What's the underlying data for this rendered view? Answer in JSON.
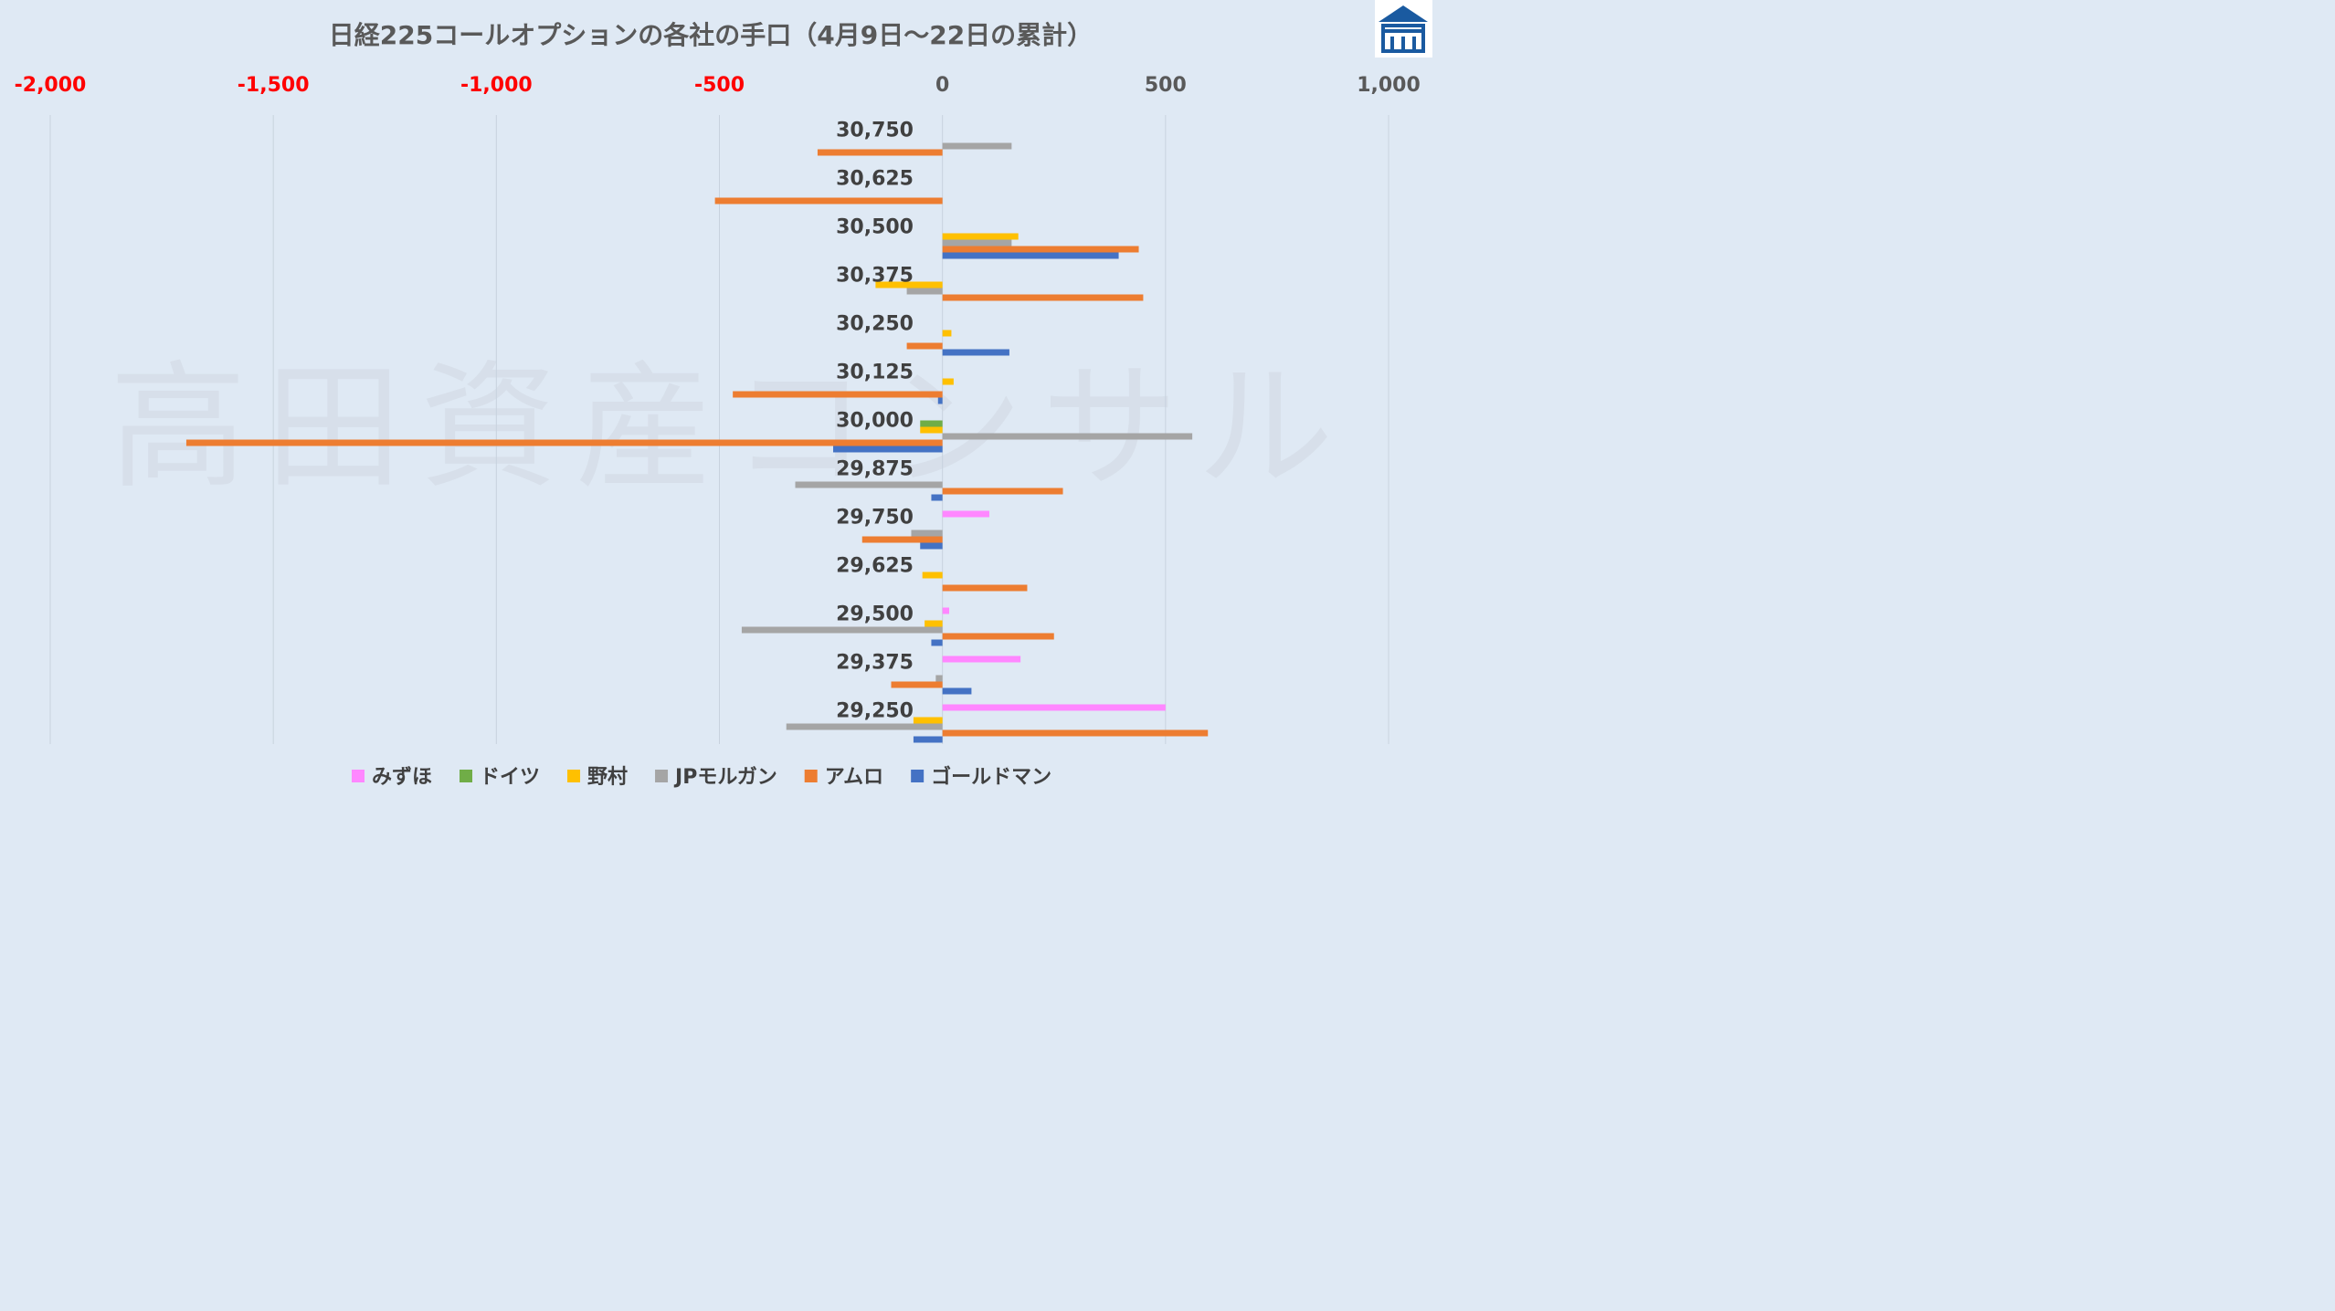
{
  "chart_data": {
    "type": "bar",
    "orientation": "horizontal",
    "title": "日経225コールオプションの各社の手口（4月9日～22日の累計）",
    "watermark": "高田資産コンサル",
    "categories": [
      "30,750",
      "30,625",
      "30,500",
      "30,375",
      "30,250",
      "30,125",
      "30,000",
      "29,875",
      "29,750",
      "29,625",
      "29,500",
      "29,375",
      "29,250"
    ],
    "xlim": [
      -2000,
      1000
    ],
    "xticks": [
      -2000,
      -1500,
      -1000,
      -500,
      0,
      500,
      1000
    ],
    "xtick_labels": [
      "-2,000",
      "-1,500",
      "-1,000",
      "-500",
      "0",
      "500",
      "1,000"
    ],
    "negative_tick_color": "#ff0000",
    "positive_tick_color": "#595959",
    "grid": true,
    "legend_position": "bottom",
    "series": [
      {
        "name": "みずほ",
        "color": "#ff87ff",
        "values": [
          0,
          0,
          0,
          0,
          0,
          0,
          0,
          0,
          105,
          0,
          15,
          175,
          500
        ]
      },
      {
        "name": "ドイツ",
        "color": "#70ad47",
        "values": [
          0,
          0,
          0,
          0,
          0,
          0,
          -50,
          0,
          0,
          0,
          0,
          0,
          0
        ]
      },
      {
        "name": "野村",
        "color": "#ffc000",
        "values": [
          0,
          0,
          170,
          -150,
          20,
          25,
          -50,
          0,
          0,
          -45,
          -40,
          0,
          -65
        ]
      },
      {
        "name": "JPモルガン",
        "color": "#a5a5a5",
        "values": [
          155,
          0,
          155,
          -80,
          0,
          0,
          560,
          -330,
          -70,
          0,
          -450,
          -15,
          -350
        ]
      },
      {
        "name": "アムロ",
        "color": "#ed7d31",
        "values": [
          -280,
          -510,
          440,
          450,
          -80,
          -470,
          -1695,
          270,
          -180,
          190,
          250,
          -115,
          595
        ]
      },
      {
        "name": "ゴールドマン",
        "color": "#4472c4",
        "values": [
          0,
          0,
          395,
          0,
          150,
          -10,
          -245,
          -25,
          -50,
          0,
          -25,
          65,
          -65
        ]
      }
    ]
  },
  "logo": {
    "name": "company-logo",
    "glyph": "亠",
    "color": "#1a5aa0"
  }
}
